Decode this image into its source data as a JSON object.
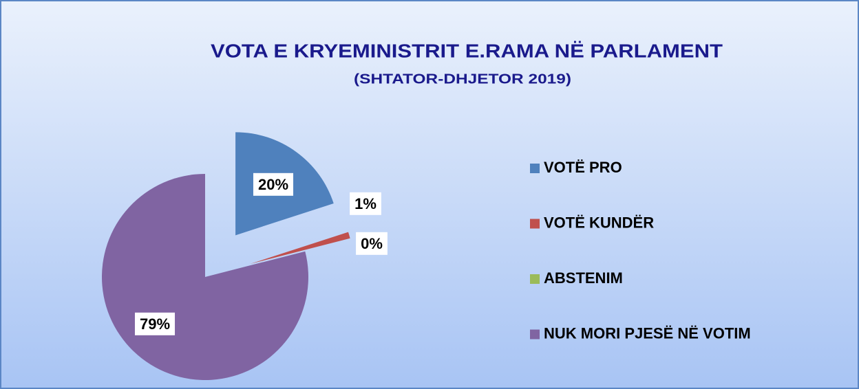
{
  "chart_data": {
    "type": "pie",
    "title": "VOTA E KRYEMINISTRIT E.RAMA NË PARLAMENT",
    "subtitle": "(SHTATOR-DHJETOR 2019)",
    "categories": [
      "VOTË PRO",
      "VOTË KUNDËR",
      "ABSTENIM",
      "NUK MORI PJESË NË VOTIM"
    ],
    "values": [
      20,
      1,
      0,
      79
    ],
    "value_labels": [
      "20%",
      "1%",
      "0%",
      "79%"
    ],
    "colors": [
      "#4f81bd",
      "#c0504d",
      "#9bbb59",
      "#8064a2"
    ],
    "legend": "right"
  }
}
